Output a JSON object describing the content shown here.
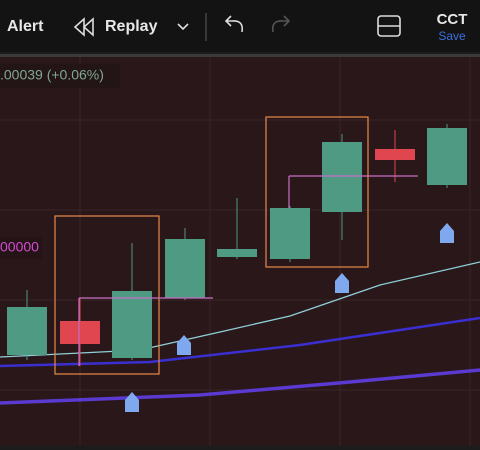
{
  "toolbar": {
    "alert": "Alert",
    "replay": "Replay",
    "symbol": "CCT",
    "save": "Save"
  },
  "chart": {
    "change_label": ".00039 (+0.06%)",
    "price_label": "00000"
  }
}
